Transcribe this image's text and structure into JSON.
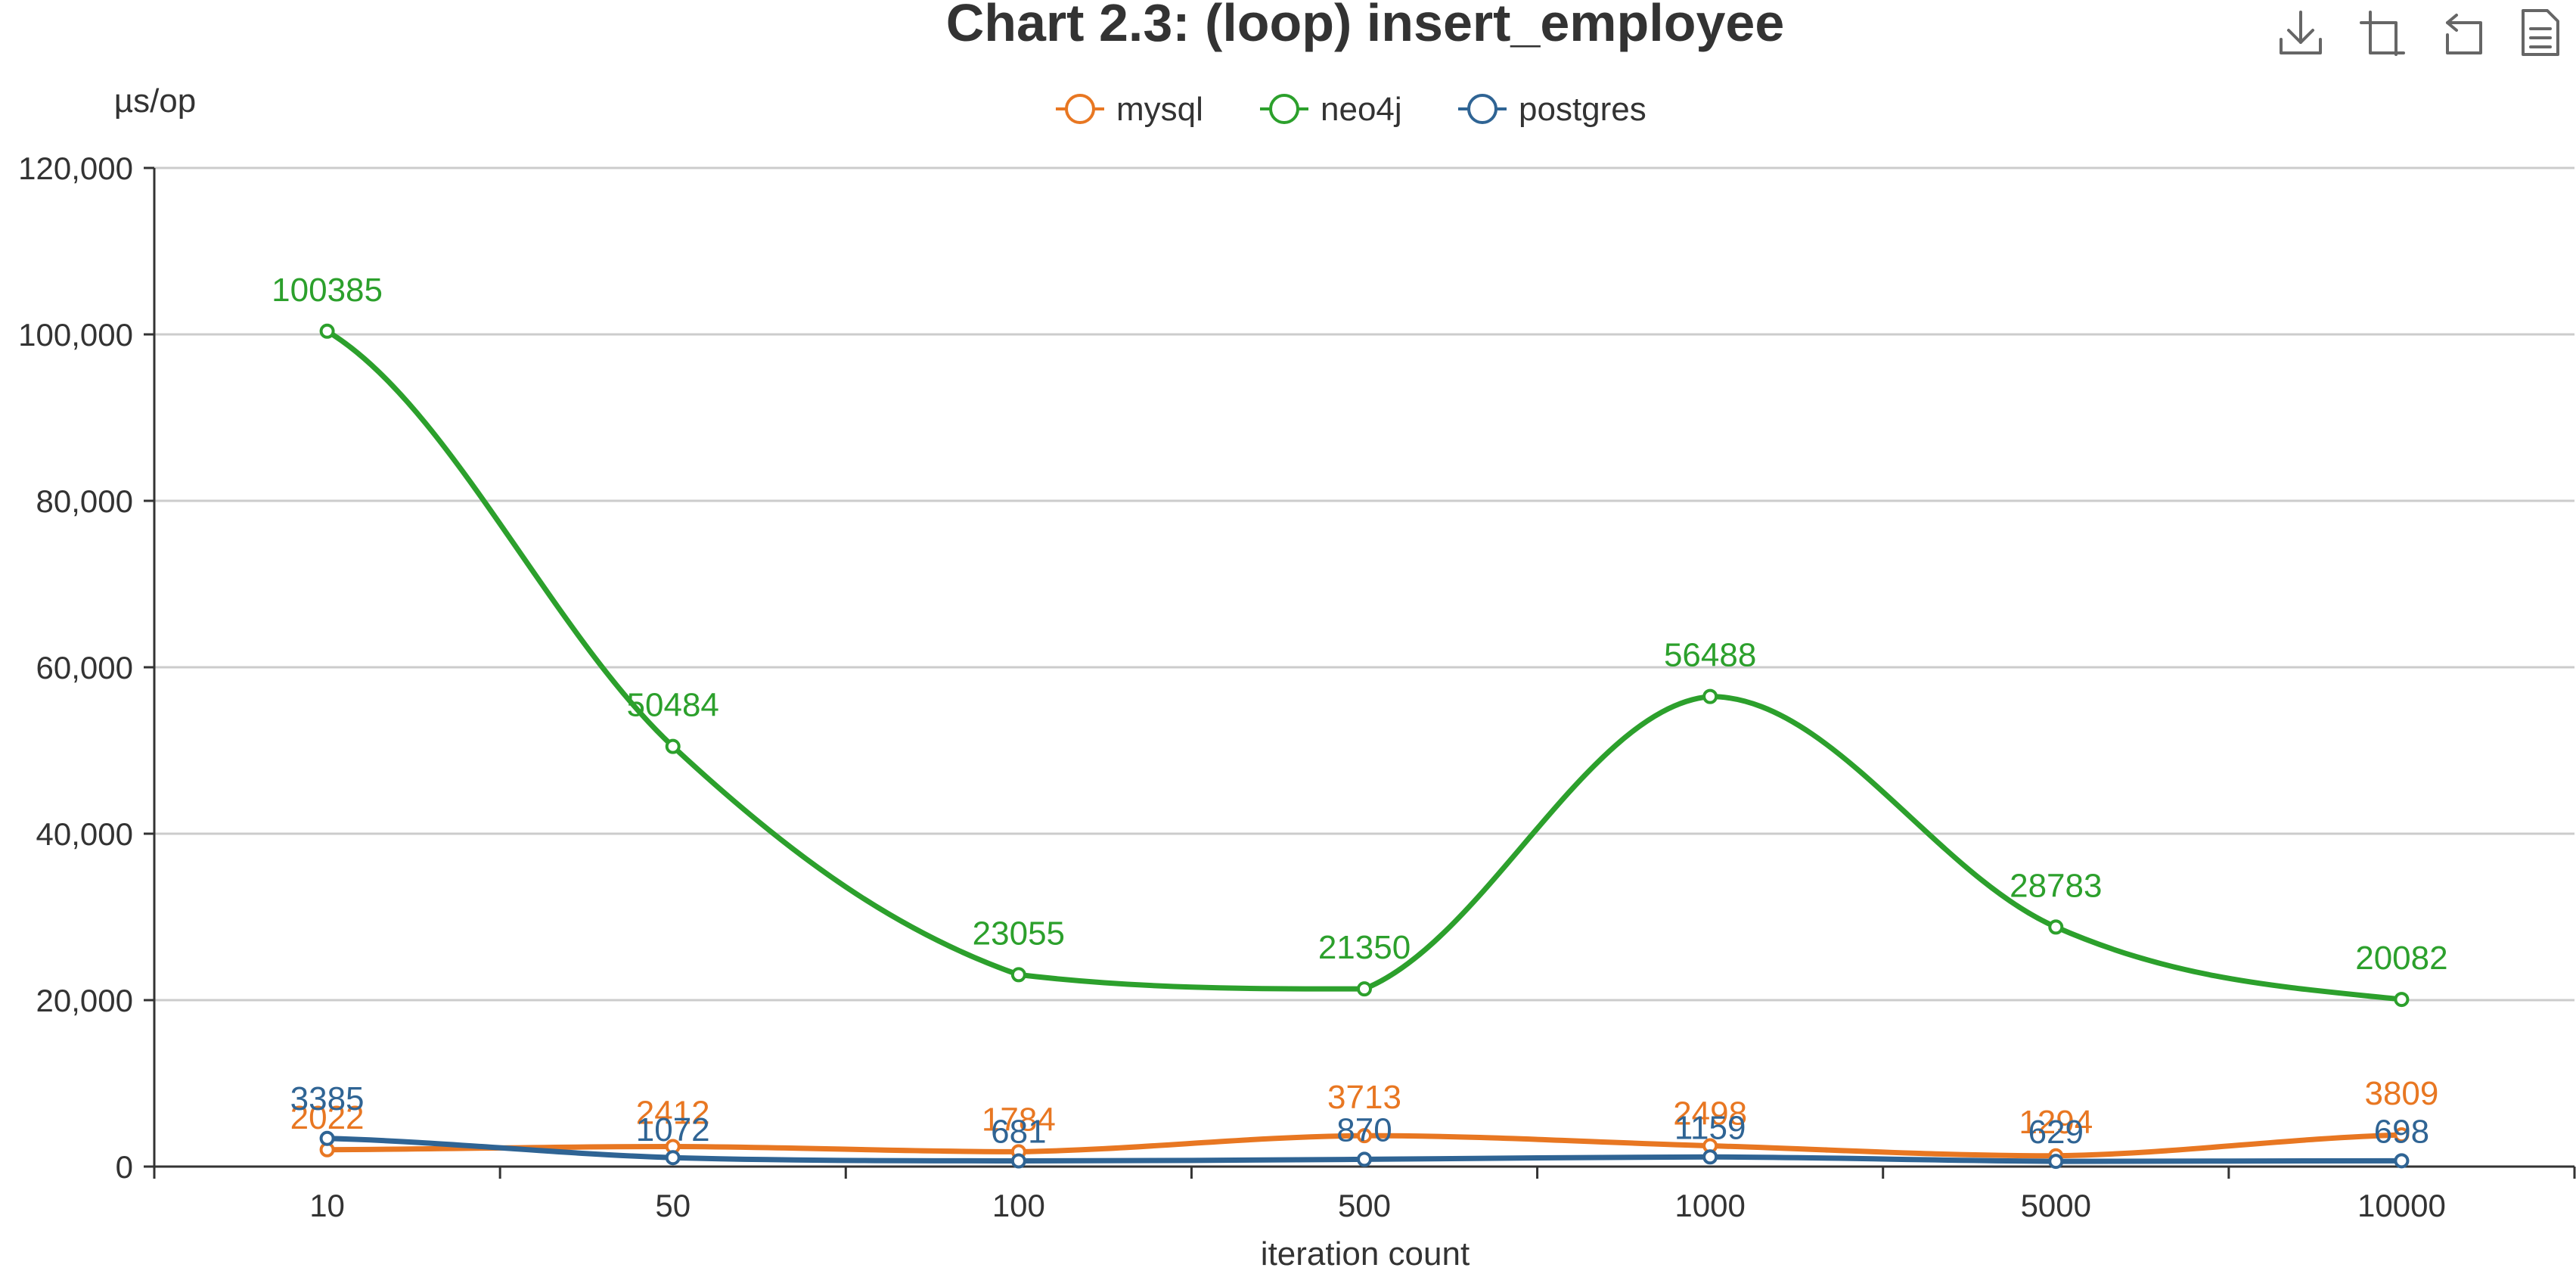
{
  "toolbar": {
    "icons": [
      "download-icon",
      "data-zoom-icon",
      "zoom-reset-icon",
      "data-view-icon"
    ]
  },
  "colors": {
    "mysql": "#e87722",
    "neo4j": "#2ca02c",
    "postgres": "#2f6494",
    "grid": "#cccccc",
    "axis": "#333333"
  },
  "chart_data": {
    "type": "line",
    "smooth": true,
    "title": "Chart 2.3: (loop) insert_employee",
    "xlabel": "iteration count",
    "ylabel": "µs/op",
    "categories": [
      "10",
      "50",
      "100",
      "500",
      "1000",
      "5000",
      "10000"
    ],
    "ylim": [
      0,
      120000
    ],
    "yticks": [
      0,
      20000,
      40000,
      60000,
      80000,
      100000,
      120000
    ],
    "ytick_labels": [
      "0",
      "20,000",
      "40,000",
      "60,000",
      "80,000",
      "100,000",
      "120,000"
    ],
    "grid": true,
    "legend_position": "top-center",
    "series": [
      {
        "name": "mysql",
        "values": [
          2022,
          2412,
          1784,
          3713,
          2498,
          1294,
          3809
        ]
      },
      {
        "name": "neo4j",
        "values": [
          100385,
          50484,
          23055,
          21350,
          56488,
          28783,
          20082
        ]
      },
      {
        "name": "postgres",
        "values": [
          3385,
          1072,
          681,
          870,
          1159,
          629,
          698
        ]
      }
    ]
  }
}
